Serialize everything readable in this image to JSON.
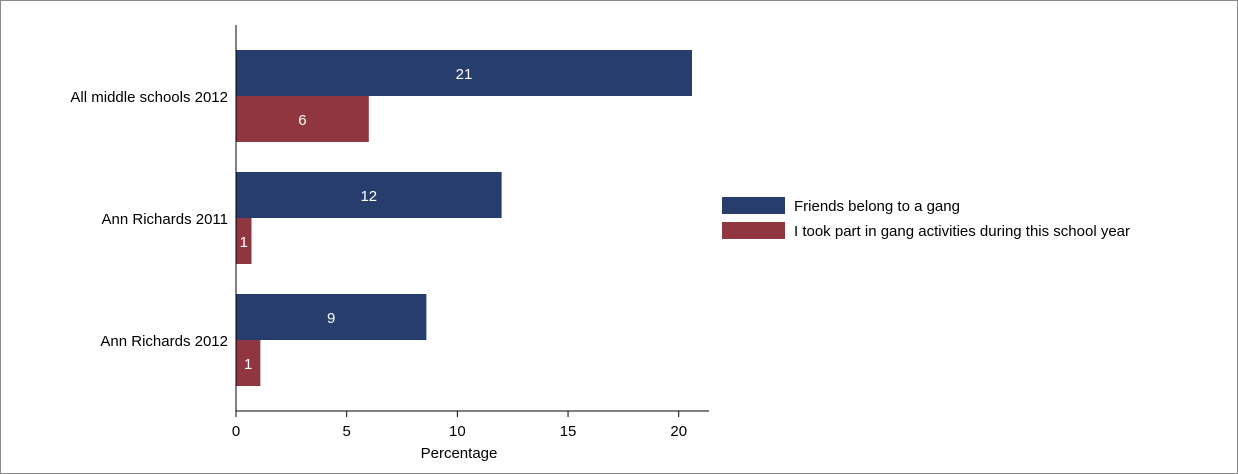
{
  "chart_data": {
    "type": "bar",
    "orientation": "horizontal",
    "categories": [
      "All middle schools 2012",
      "Ann Richards 2011",
      "Ann Richards 2012"
    ],
    "series": [
      {
        "name": "Friends belong to a gang",
        "values": [
          20.6,
          12.0,
          8.6
        ],
        "labels": [
          "21",
          "12",
          "9"
        ],
        "color": "#273d6e"
      },
      {
        "name": "I took part in gang activities during this school year",
        "values": [
          6.0,
          0.7,
          1.1
        ],
        "labels": [
          "6",
          "1",
          "1"
        ],
        "color": "#903640"
      }
    ],
    "xlabel": "Percentage",
    "xlim": [
      0,
      21.4
    ],
    "xticks": [
      0,
      5,
      10,
      15,
      20
    ],
    "grid": false,
    "legend_position": "right"
  }
}
